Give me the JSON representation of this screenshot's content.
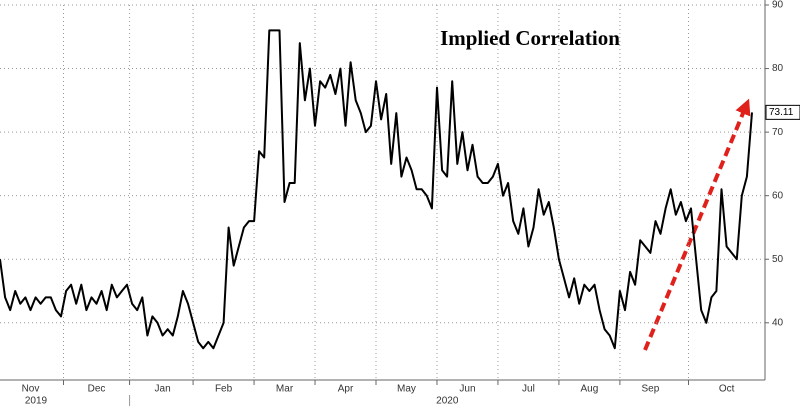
{
  "chart_data": {
    "type": "line",
    "title": "Implied Correlation",
    "categories": [
      null,
      null,
      null,
      null,
      null,
      null,
      "Nov",
      null,
      null,
      null,
      null,
      null,
      null,
      null,
      null,
      null,
      null,
      null,
      null,
      "Dec",
      null,
      null,
      null,
      null,
      null,
      null,
      null,
      null,
      null,
      null,
      null,
      null,
      "Jan",
      null,
      null,
      null,
      null,
      null,
      null,
      null,
      null,
      null,
      null,
      null,
      "Feb",
      null,
      null,
      null,
      null,
      null,
      null,
      null,
      null,
      null,
      null,
      null,
      "Mar",
      null,
      null,
      null,
      null,
      null,
      null,
      null,
      null,
      null,
      null,
      null,
      "Apr",
      null,
      null,
      null,
      null,
      null,
      null,
      null,
      null,
      null,
      null,
      null,
      "May",
      null,
      null,
      null,
      null,
      null,
      null,
      null,
      null,
      null,
      null,
      null,
      "Jun",
      null,
      null,
      null,
      null,
      null,
      null,
      null,
      null,
      null,
      null,
      null,
      "Jul",
      null,
      null,
      null,
      null,
      null,
      null,
      null,
      null,
      null,
      null,
      null,
      "Aug",
      null,
      null,
      null,
      null,
      null,
      null,
      null,
      null,
      null,
      null,
      null,
      "Sep",
      null,
      null,
      null,
      null,
      null,
      null,
      null,
      null,
      null,
      null,
      null,
      null,
      null,
      null,
      "Oct",
      null,
      null,
      null,
      null,
      null
    ],
    "values": [
      50,
      44,
      42,
      45,
      43,
      44,
      42,
      44,
      43,
      44,
      44,
      42,
      41,
      45,
      46,
      43,
      46,
      42,
      44,
      43,
      45,
      42,
      46,
      44,
      45,
      46,
      43,
      42,
      44,
      38,
      41,
      40,
      38,
      39,
      38,
      41,
      45,
      43,
      40,
      37,
      36,
      37,
      36,
      38,
      40,
      55,
      49,
      52,
      55,
      56,
      56,
      67,
      66,
      86,
      86,
      86,
      59,
      62,
      62,
      84,
      75,
      80,
      71,
      78,
      77,
      79,
      76,
      80,
      71,
      81,
      75,
      73,
      70,
      71,
      78,
      72,
      76,
      65,
      73,
      63,
      66,
      64,
      61,
      61,
      60,
      58,
      77,
      64,
      63,
      78,
      65,
      70,
      64,
      68,
      63,
      62,
      62,
      63,
      65,
      60,
      62,
      56,
      54,
      58,
      52,
      55,
      61,
      57,
      59,
      55,
      50,
      47,
      44,
      47,
      43,
      46,
      45,
      46,
      42,
      39,
      38,
      36,
      45,
      42,
      48,
      46,
      53,
      52,
      51,
      56,
      54,
      58,
      61,
      57,
      59,
      56,
      58,
      50,
      42,
      40,
      44,
      45,
      61,
      52,
      51,
      50,
      60,
      63,
      73.11
    ],
    "years": [
      "2019",
      "2020"
    ],
    "color": "#000000",
    "ylim": [
      31,
      90
    ],
    "yticks": [
      40,
      50,
      60,
      70,
      80,
      90
    ],
    "grid": true
  }
}
